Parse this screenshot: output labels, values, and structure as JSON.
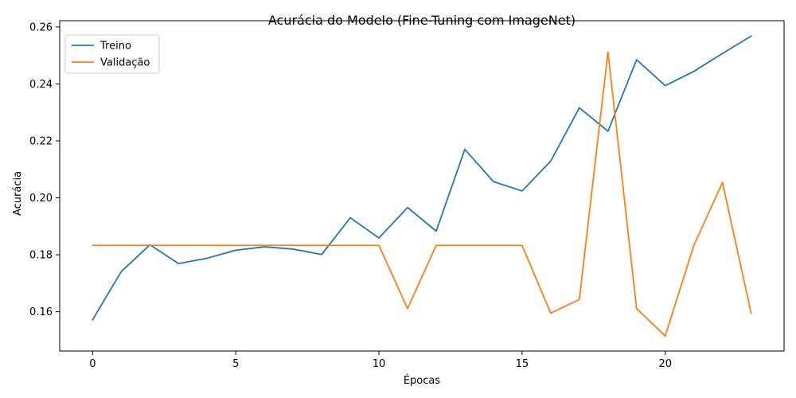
{
  "chart_data": {
    "type": "line",
    "title": "Acurácia do Modelo (Fine-Tuning com ImageNet)",
    "xlabel": "Épocas",
    "ylabel": "Acurácia",
    "xlim": [
      -1.15,
      24.15
    ],
    "ylim": [
      0.1462,
      0.2622
    ],
    "xticks": [
      0,
      5,
      10,
      15,
      20
    ],
    "xtick_labels": [
      "0",
      "5",
      "10",
      "15",
      "20"
    ],
    "yticks": [
      0.16,
      0.18,
      0.2,
      0.22,
      0.24,
      0.26
    ],
    "ytick_labels": [
      "0.16",
      "0.18",
      "0.20",
      "0.22",
      "0.24",
      "0.26"
    ],
    "grid": false,
    "legend_position": "top-left",
    "x": [
      0,
      1,
      2,
      3,
      4,
      5,
      6,
      7,
      8,
      9,
      10,
      11,
      12,
      13,
      14,
      15,
      16,
      17,
      18,
      19,
      20,
      21,
      22,
      23
    ],
    "series": [
      {
        "name": "Treino",
        "color": "#1f77b4",
        "values": [
          0.1572,
          0.1741,
          0.1835,
          0.1769,
          0.1788,
          0.1816,
          0.1828,
          0.182,
          0.1801,
          0.193,
          0.1859,
          0.1966,
          0.1883,
          0.217,
          0.2057,
          0.2024,
          0.2129,
          0.2316,
          0.2234,
          0.2485,
          0.2394,
          0.2444,
          0.2507,
          0.2568
        ]
      },
      {
        "name": "Validação",
        "color": "#ff7f0e",
        "values": [
          0.1833,
          0.1833,
          0.1833,
          0.1833,
          0.1833,
          0.1833,
          0.1833,
          0.1833,
          0.1833,
          0.1833,
          0.1833,
          0.1611,
          0.1833,
          0.1833,
          0.1833,
          0.1833,
          0.1595,
          0.1643,
          0.2512,
          0.1611,
          0.1515,
          0.1833,
          0.2054,
          0.1595
        ]
      }
    ]
  }
}
